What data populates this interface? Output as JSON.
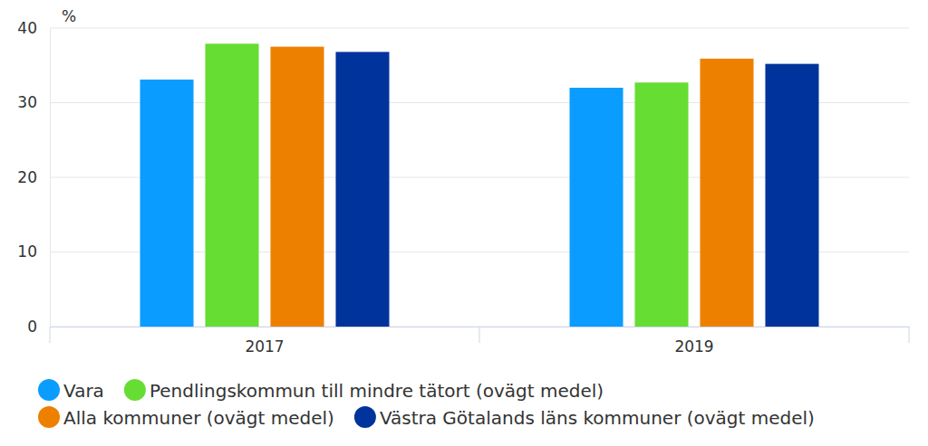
{
  "chart_data": {
    "type": "bar",
    "ylabel": "%",
    "categories": [
      "2017",
      "2019"
    ],
    "series": [
      {
        "name": "Vara",
        "color": "#0a9dff",
        "values": [
          33.1,
          32.0
        ]
      },
      {
        "name": "Pendlingskommun till mindre tätort (ovägt medel)",
        "color": "#66dd33",
        "values": [
          37.9,
          32.7
        ]
      },
      {
        "name": "Alla kommuner (ovägt medel)",
        "color": "#ee8000",
        "values": [
          37.5,
          35.9
        ]
      },
      {
        "name": "Västra Götalands läns kommuner (ovägt medel)",
        "color": "#00339c",
        "values": [
          36.8,
          35.2
        ]
      }
    ],
    "ylim": [
      0,
      40
    ],
    "yticks": [
      0,
      10,
      20,
      30,
      40
    ],
    "grid": true,
    "legend": "bottom"
  }
}
